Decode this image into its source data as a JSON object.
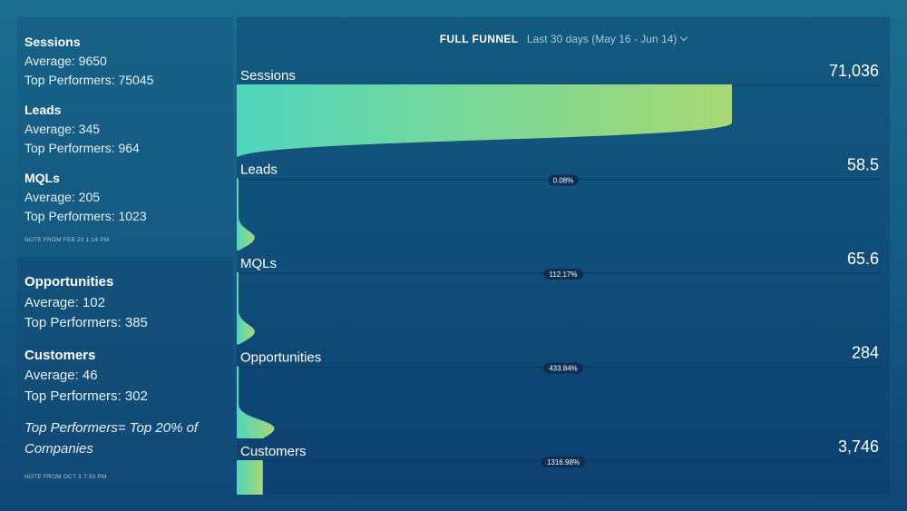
{
  "notes": [
    {
      "groups": [
        {
          "title": "Sessions",
          "average": "Average: 9650",
          "top": "Top Performers: 75045"
        },
        {
          "title": "Leads",
          "average": "Average: 345",
          "top": "Top Performers: 964"
        },
        {
          "title": "MQLs",
          "average": "Average: 205",
          "top": "Top Performers: 1023"
        }
      ],
      "footer": "NOTE FROM FEB 20 1:14 PM"
    },
    {
      "groups": [
        {
          "title": "Opportunities",
          "average": "Average: 102",
          "top": "Top Performers: 385"
        },
        {
          "title": "Customers",
          "average": "Average: 46",
          "top": "Top Performers: 302"
        }
      ],
      "remark": "Top Performers= Top 20% of Companies",
      "footer": "NOTE FROM OCT 3 7:33 PM"
    }
  ],
  "header": {
    "title": "FULL FUNNEL",
    "range": "Last 30 days (May 16 - Jun 14)"
  },
  "colors": {
    "funnel_start": "#4fd6bc",
    "funnel_end": "#a8d874"
  },
  "chart_data": {
    "type": "funnel",
    "stages": [
      "Sessions",
      "Leads",
      "MQLs",
      "Opportunities",
      "Customers"
    ],
    "values": [
      71036,
      58.5,
      65.6,
      284,
      3746
    ],
    "value_labels": [
      "71,036",
      "58.5",
      "65.6",
      "284",
      "3,746"
    ],
    "conversion_labels": [
      "0.08%",
      "112.17%",
      "433.84%",
      "1316.98%"
    ]
  }
}
